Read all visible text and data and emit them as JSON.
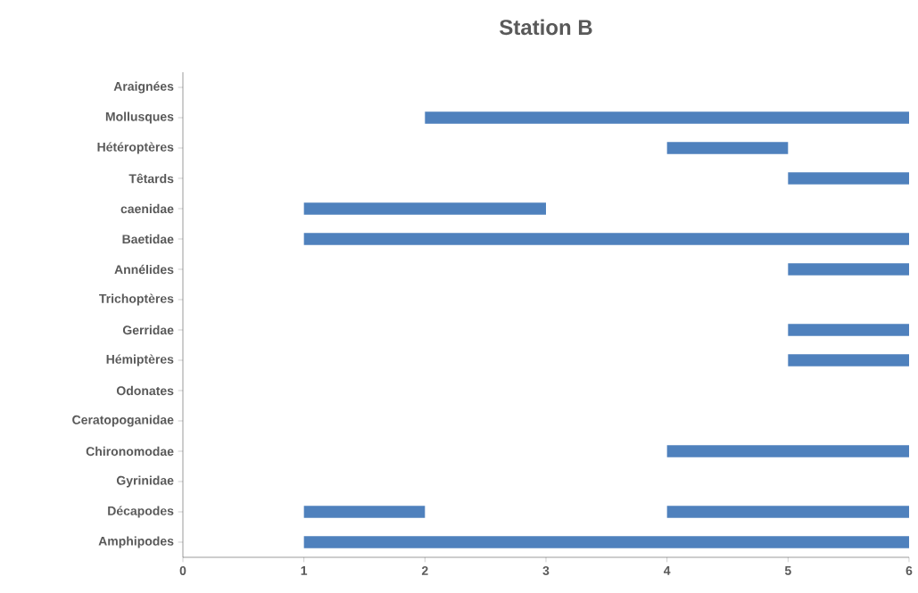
{
  "chart_data": {
    "type": "bar",
    "orientation": "horizontal",
    "title": "Station B",
    "categories": [
      "Araignées",
      "Mollusques",
      "Hétéroptères",
      "Têtards",
      "caenidae",
      "Baetidae",
      "Annélides",
      "Trichoptères",
      "Gerridae",
      "Hémiptères",
      "Odonates",
      "Ceratopoganidae",
      "Chironomodae",
      "Gyrinidae",
      "Décapodes",
      "Amphipodes"
    ],
    "series": [
      {
        "color": "#4f81bd",
        "base": [
          null,
          2,
          4,
          5,
          1,
          1,
          5,
          null,
          5,
          5,
          null,
          null,
          4,
          null,
          1,
          1
        ],
        "values": [
          null,
          4,
          1,
          1,
          2,
          5,
          1,
          null,
          1,
          1,
          null,
          null,
          2,
          null,
          1,
          5
        ]
      },
      {
        "color": "#4f81bd",
        "base": [
          null,
          null,
          null,
          null,
          null,
          null,
          null,
          null,
          null,
          null,
          null,
          null,
          null,
          null,
          4,
          null
        ],
        "values": [
          null,
          null,
          null,
          null,
          null,
          null,
          null,
          null,
          null,
          null,
          null,
          null,
          null,
          null,
          2,
          null
        ]
      }
    ],
    "xlim": [
      0,
      6
    ],
    "xticks": [
      0,
      1,
      2,
      3,
      4,
      5,
      6
    ],
    "grid": false
  }
}
